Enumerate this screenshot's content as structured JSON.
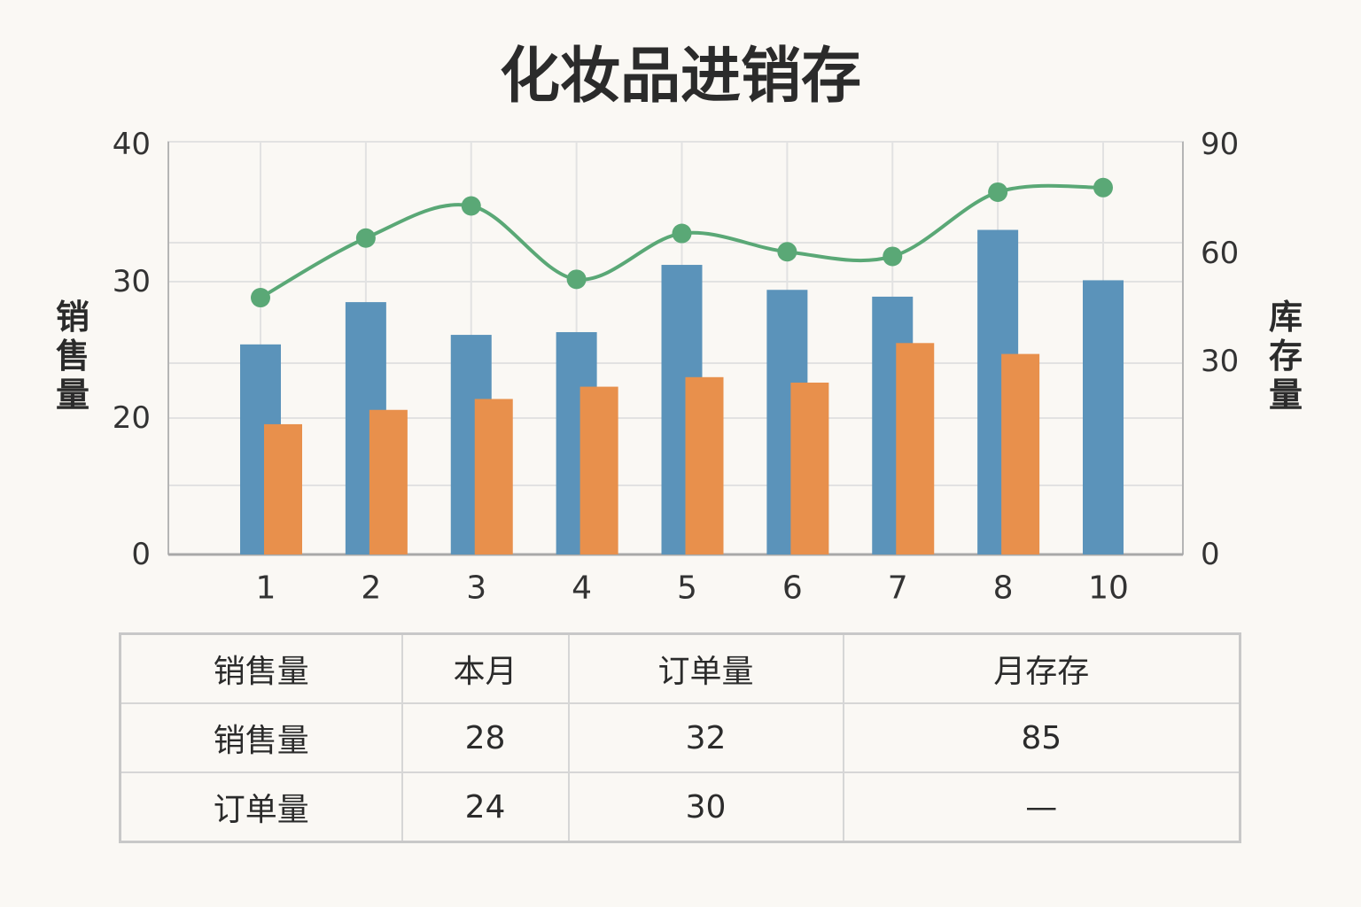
{
  "chart_data": {
    "type": "bar",
    "title": "化妆品进销存",
    "categories": [
      "1",
      "2",
      "3",
      "4",
      "5",
      "6",
      "7",
      "8",
      "10"
    ],
    "series": [
      {
        "type": "bar",
        "axis": "left",
        "color": "#5b93ba",
        "values": [
          25.4,
          28.5,
          26.1,
          26.3,
          31.2,
          29.4,
          28.9,
          33.7,
          30.1
        ]
      },
      {
        "type": "bar",
        "axis": "left",
        "color": "#e8904c",
        "values": [
          19.1,
          20.6,
          21.4,
          22.3,
          23.0,
          22.6,
          25.5,
          24.7,
          null
        ]
      },
      {
        "type": "line",
        "axis": "right",
        "color": "#5aa876",
        "values": [
          56,
          69,
          76,
          60,
          70,
          66,
          65,
          79,
          80
        ]
      }
    ],
    "ylabel": "销售量",
    "ylabel_right": "库存量",
    "yticks_left": [
      "40",
      "30",
      "20",
      "0"
    ],
    "yticks_right": [
      "90",
      "60",
      "30",
      "0"
    ],
    "ylim_right": [
      0,
      90
    ],
    "grid": true
  },
  "table": {
    "header": [
      "销售量",
      "本月",
      "订单量",
      "月存存"
    ],
    "rows": [
      [
        "销售量",
        "28",
        "32",
        "85"
      ],
      [
        "订单量",
        "24",
        "30",
        "—"
      ]
    ]
  }
}
